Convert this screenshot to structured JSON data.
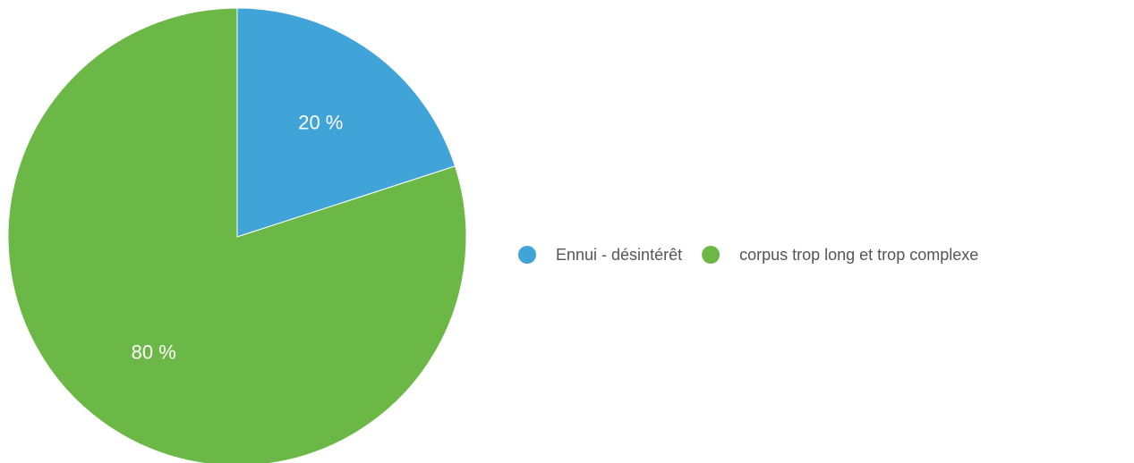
{
  "chart_data": {
    "type": "pie",
    "slices": [
      {
        "label": "Ennui - désintérêt",
        "value": 20,
        "display": "20 %",
        "color": "#41a4d9"
      },
      {
        "label": "corpus trop long et trop complexe",
        "value": 80,
        "display": "80 %",
        "color": "#6cb847"
      }
    ],
    "legend": {
      "position": "right"
    }
  }
}
